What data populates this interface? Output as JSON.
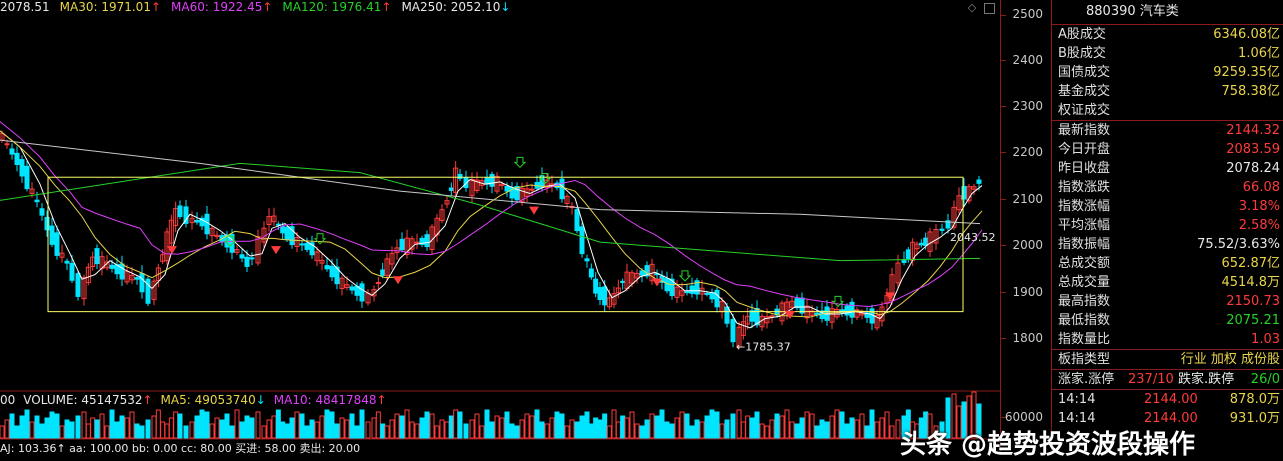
{
  "ma_legend": {
    "ma5": "2078.51",
    "ma30_label": "MA30:",
    "ma30_value": "1971.01",
    "ma60_label": "MA60:",
    "ma60_value": "1922.45",
    "ma120_label": "MA120:",
    "ma120_value": "1976.41",
    "ma250_label": "MA250:",
    "ma250_value": "2052.10",
    "arrow_up": "↑",
    "arrow_down": "↓"
  },
  "volume_legend": {
    "prefix": "00",
    "volume_label": "VOLUME:",
    "volume_value": "45147532",
    "ma5_label": "MA5:",
    "ma5_value": "49053740",
    "ma10_label": "MA10:",
    "ma10_value": "48417848"
  },
  "indicator_legend": "AJ: 103.36↑  aa: 100.00  bb: 0.00  cc: 80.00  买进: 58.00  卖出: 20.00",
  "price_axis": [
    "2500",
    "2400",
    "2300",
    "2200",
    "2100",
    "2000",
    "1900",
    "1800"
  ],
  "volume_axis": [
    "60000"
  ],
  "annotations": {
    "low": "1785.37",
    "last": "2043.52"
  },
  "colors": {
    "up": "#ff3b3b",
    "down": "#00e5ff",
    "ma5": "#ffffff",
    "ma30": "#e8d44a",
    "ma60": "#e040fb",
    "ma120": "#27d127",
    "ma250": "#c8c8c8",
    "box": "#ffff66"
  },
  "panel": {
    "code": "880390",
    "name": "汽车类",
    "rows_top": [
      {
        "label": "A股成交",
        "value": "6346.08亿",
        "color": "yellow"
      },
      {
        "label": "B股成交",
        "value": "1.06亿",
        "color": "yellow"
      },
      {
        "label": "国债成交",
        "value": "9259.35亿",
        "color": "yellow"
      },
      {
        "label": "基金成交",
        "value": "758.38亿",
        "color": "yellow"
      },
      {
        "label": "权证成交",
        "value": "",
        "color": "yellow"
      }
    ],
    "rows_stats": [
      {
        "label": "最新指数",
        "value": "2144.32",
        "color": "red"
      },
      {
        "label": "今日开盘",
        "value": "2083.59",
        "color": "red"
      },
      {
        "label": "昨日收盘",
        "value": "2078.24",
        "color": "white"
      },
      {
        "label": "指数涨跌",
        "value": "66.08",
        "color": "red"
      },
      {
        "label": "指数涨幅",
        "value": "3.18%",
        "color": "red"
      },
      {
        "label": "平均涨幅",
        "value": "2.58%",
        "color": "red"
      },
      {
        "label": "指数振幅",
        "value": "75.52/3.63%",
        "color": "white"
      },
      {
        "label": "总成交额",
        "value": "652.87亿",
        "color": "yellow"
      },
      {
        "label": "总成交量",
        "value": "4514.8万",
        "color": "yellow"
      },
      {
        "label": "最高指数",
        "value": "2150.73",
        "color": "red"
      },
      {
        "label": "最低指数",
        "value": "2075.21",
        "color": "green"
      },
      {
        "label": "指数量比",
        "value": "1.03",
        "color": "red"
      }
    ],
    "type_label": "板指类型",
    "type_value": "行业 加权 成份股",
    "limit_up_label": "涨家.涨停",
    "limit_up_value": "237/10",
    "limit_down_label": "跌家.跌停",
    "limit_down_value": "26/0",
    "ticks": [
      {
        "time": "14:14",
        "price": "2144.00",
        "vol": "878.0万"
      },
      {
        "time": "14:14",
        "price": "2144.00",
        "vol": "931.0万"
      }
    ]
  },
  "watermark": "头条 @趋势投资波段操作"
}
